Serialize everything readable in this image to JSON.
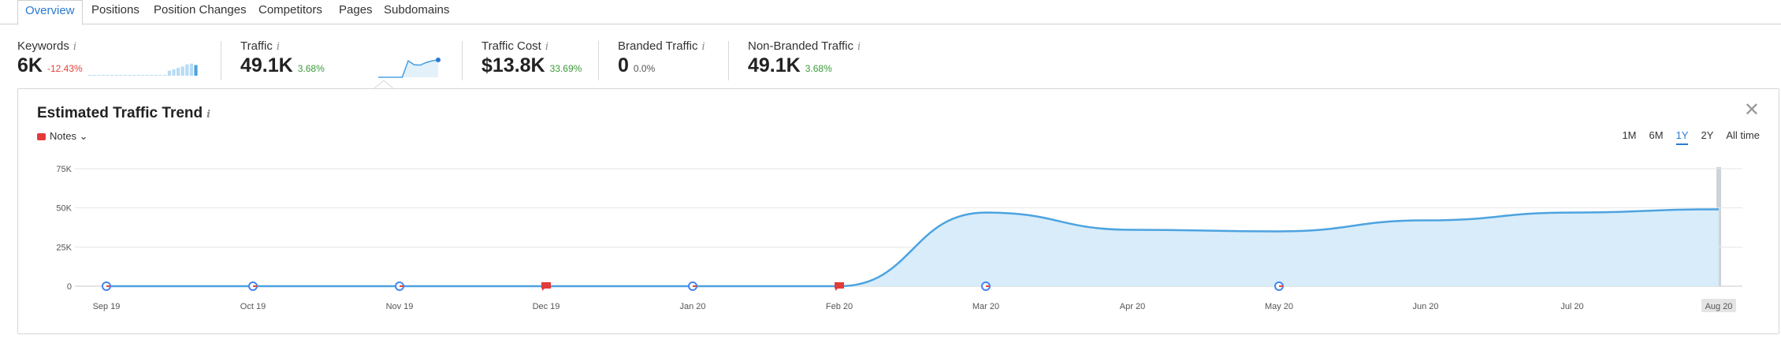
{
  "tabs": [
    {
      "label": "Overview",
      "active": true
    },
    {
      "label": "Positions"
    },
    {
      "label": "Position Changes"
    },
    {
      "label": "Competitors"
    },
    {
      "label": "Pages"
    },
    {
      "label": "Subdomains"
    }
  ],
  "metrics": {
    "keywords": {
      "title": "Keywords",
      "value": "6K",
      "delta": "-12.43%"
    },
    "traffic": {
      "title": "Traffic",
      "value": "49.1K",
      "delta": "3.68%"
    },
    "traffic_cost": {
      "title": "Traffic Cost",
      "value": "$13.8K",
      "delta": "33.69%"
    },
    "branded": {
      "title": "Branded Traffic",
      "value": "0",
      "delta": "0.0%"
    },
    "non_branded": {
      "title": "Non-Branded Traffic",
      "value": "49.1K",
      "delta": "3.68%"
    }
  },
  "info_glyph": "i",
  "trend": {
    "title": "Estimated Traffic Trend",
    "notes_label": "Notes",
    "ranges": [
      "1M",
      "6M",
      "1Y",
      "2Y",
      "All time"
    ],
    "active_range": "1Y"
  },
  "colors": {
    "accent": "#2a7ad1",
    "line": "#4da3e0",
    "area": "#d8ecf9",
    "negative": "#e0433a",
    "positive": "#3a9a3a",
    "note_flag": "#e23b3b"
  },
  "chart_data": {
    "type": "area",
    "x": [
      "Sep 19",
      "Oct 19",
      "Nov 19",
      "Dec 19",
      "Jan 20",
      "Feb 20",
      "Mar 20",
      "Apr 20",
      "May 20",
      "Jun 20",
      "Jul 20",
      "Aug 20"
    ],
    "series": [
      {
        "values": [
          0,
          0,
          0,
          0,
          0,
          0,
          47000,
          36000,
          35000,
          42000,
          47000,
          49100
        ]
      }
    ],
    "y_ticks": [
      "0",
      "25K",
      "50K",
      "75K"
    ],
    "ylim": [
      0,
      75000
    ],
    "grid": true,
    "highlighted_x": "Aug 20",
    "markers": [
      {
        "x": "Sep 19",
        "kind": "google-update"
      },
      {
        "x": "Oct 19",
        "kind": "google-update"
      },
      {
        "x": "Nov 19",
        "kind": "google-update"
      },
      {
        "x": "Dec 19",
        "kind": "note"
      },
      {
        "x": "Jan 20",
        "kind": "google-update"
      },
      {
        "x": "Feb 20",
        "kind": "note"
      },
      {
        "x": "Mar 20",
        "kind": "google-update"
      },
      {
        "x": "May 20",
        "kind": "google-update"
      }
    ]
  },
  "sparklines": {
    "keywords_bars": [
      0.02,
      0.02,
      0.02,
      0.02,
      0.02,
      0.02,
      0.02,
      0.02,
      0.02,
      0.02,
      0.02,
      0.02,
      0.02,
      0.02,
      0.02,
      0.02,
      0.02,
      0.02,
      0.35,
      0.45,
      0.55,
      0.65,
      0.8,
      0.85,
      0.75
    ],
    "traffic_values": [
      0,
      0,
      0,
      0,
      0,
      0.95,
      0.72,
      0.7,
      0.85,
      0.95,
      1.0
    ]
  }
}
